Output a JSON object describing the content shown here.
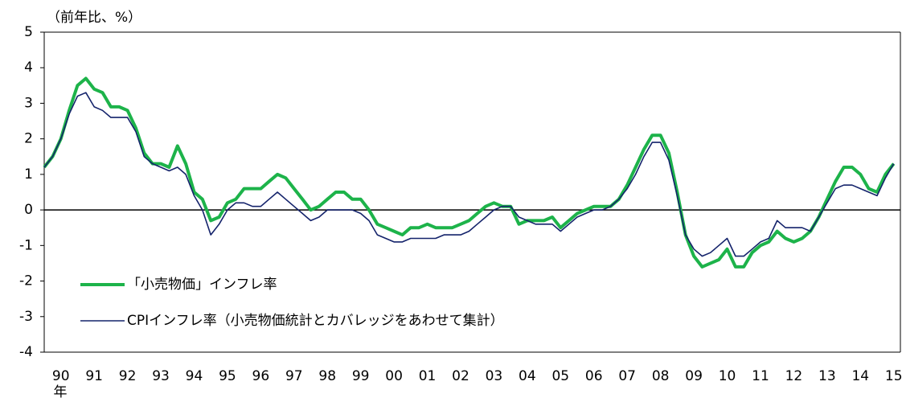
{
  "chart_data": {
    "type": "line",
    "y_unit_label": "（前年比、%）",
    "x_label": "年",
    "x": [
      1990,
      1990.25,
      1990.5,
      1990.75,
      1991,
      1991.25,
      1991.5,
      1991.75,
      1992,
      1992.25,
      1992.5,
      1992.75,
      1993,
      1993.25,
      1993.5,
      1993.75,
      1994,
      1994.25,
      1994.5,
      1994.75,
      1995,
      1995.25,
      1995.5,
      1995.75,
      1996,
      1996.25,
      1996.5,
      1996.75,
      1997,
      1997.25,
      1997.5,
      1997.75,
      1998,
      1998.25,
      1998.5,
      1998.75,
      1999,
      1999.25,
      1999.5,
      1999.75,
      2000,
      2000.25,
      2000.5,
      2000.75,
      2001,
      2001.25,
      2001.5,
      2001.75,
      2002,
      2002.25,
      2002.5,
      2002.75,
      2003,
      2003.25,
      2003.5,
      2003.75,
      2004,
      2004.25,
      2004.5,
      2004.75,
      2005,
      2005.25,
      2005.5,
      2005.75,
      2006,
      2006.25,
      2006.5,
      2006.75,
      2007,
      2007.25,
      2007.5,
      2007.75,
      2008,
      2008.25,
      2008.5,
      2008.75,
      2009,
      2009.25,
      2009.5,
      2009.75,
      2010,
      2010.25,
      2010.5,
      2010.75,
      2011,
      2011.25,
      2011.5,
      2011.75,
      2012,
      2012.25,
      2012.5,
      2012.75,
      2013,
      2013.25,
      2013.5,
      2013.75,
      2014,
      2014.25,
      2014.5,
      2014.75,
      2015,
      2015.25,
      2015.5
    ],
    "series": [
      {
        "name": "「小売物価」インフレ率",
        "color": "#1db34a",
        "width": 4,
        "values": [
          1.2,
          1.5,
          2.0,
          2.8,
          3.5,
          3.7,
          3.4,
          3.3,
          2.9,
          2.9,
          2.8,
          2.3,
          1.6,
          1.3,
          1.3,
          1.2,
          1.8,
          1.3,
          0.5,
          0.3,
          -0.3,
          -0.2,
          0.2,
          0.3,
          0.6,
          0.6,
          0.6,
          0.8,
          1.0,
          0.9,
          0.6,
          0.3,
          0.0,
          0.1,
          0.3,
          0.5,
          0.5,
          0.3,
          0.3,
          0.0,
          -0.4,
          -0.5,
          -0.6,
          -0.7,
          -0.5,
          -0.5,
          -0.4,
          -0.5,
          -0.5,
          -0.5,
          -0.4,
          -0.3,
          -0.1,
          0.1,
          0.2,
          0.1,
          0.1,
          -0.4,
          -0.3,
          -0.3,
          -0.3,
          -0.2,
          -0.5,
          -0.3,
          -0.1,
          0.0,
          0.1,
          0.1,
          0.1,
          0.3,
          0.7,
          1.2,
          1.7,
          2.1,
          2.1,
          1.6,
          0.5,
          -0.7,
          -1.3,
          -1.6,
          -1.5,
          -1.4,
          -1.1,
          -1.6,
          -1.6,
          -1.2,
          -1.0,
          -0.9,
          -0.6,
          -0.8,
          -0.9,
          -0.8,
          -0.6,
          -0.2,
          0.3,
          0.8,
          1.2,
          1.2,
          1.0,
          0.6,
          0.5,
          1.0,
          1.3
        ]
      },
      {
        "name": "CPIインフレ率（小売物価統計とカバレッジをあわせて集計）",
        "color": "#14236b",
        "width": 1.6,
        "values": [
          1.2,
          1.5,
          2.0,
          2.7,
          3.2,
          3.3,
          2.9,
          2.8,
          2.6,
          2.6,
          2.6,
          2.2,
          1.5,
          1.3,
          1.2,
          1.1,
          1.2,
          1.0,
          0.4,
          0.0,
          -0.7,
          -0.4,
          0.0,
          0.2,
          0.2,
          0.1,
          0.1,
          0.3,
          0.5,
          0.3,
          0.1,
          -0.1,
          -0.3,
          -0.2,
          0.0,
          0.0,
          0.0,
          0.0,
          -0.1,
          -0.3,
          -0.7,
          -0.8,
          -0.9,
          -0.9,
          -0.8,
          -0.8,
          -0.8,
          -0.8,
          -0.7,
          -0.7,
          -0.7,
          -0.6,
          -0.4,
          -0.2,
          0.0,
          0.1,
          0.1,
          -0.2,
          -0.3,
          -0.4,
          -0.4,
          -0.4,
          -0.6,
          -0.4,
          -0.2,
          -0.1,
          0.0,
          0.0,
          0.1,
          0.3,
          0.6,
          1.0,
          1.5,
          1.9,
          1.9,
          1.4,
          0.4,
          -0.7,
          -1.1,
          -1.3,
          -1.2,
          -1.0,
          -0.8,
          -1.3,
          -1.3,
          -1.1,
          -0.9,
          -0.8,
          -0.3,
          -0.5,
          -0.5,
          -0.5,
          -0.6,
          -0.2,
          0.2,
          0.6,
          0.7,
          0.7,
          0.6,
          0.5,
          0.4,
          0.9,
          1.3
        ]
      }
    ],
    "xlim": [
      1990,
      2015.7
    ],
    "xticks": [
      {
        "value": 1990.5,
        "label": "90"
      },
      {
        "value": 1991.5,
        "label": "91"
      },
      {
        "value": 1992.5,
        "label": "92"
      },
      {
        "value": 1993.5,
        "label": "93"
      },
      {
        "value": 1994.5,
        "label": "94"
      },
      {
        "value": 1995.5,
        "label": "95"
      },
      {
        "value": 1996.5,
        "label": "96"
      },
      {
        "value": 1997.5,
        "label": "97"
      },
      {
        "value": 1998.5,
        "label": "98"
      },
      {
        "value": 1999.5,
        "label": "99"
      },
      {
        "value": 2000.5,
        "label": "00"
      },
      {
        "value": 2001.5,
        "label": "01"
      },
      {
        "value": 2002.5,
        "label": "02"
      },
      {
        "value": 2003.5,
        "label": "03"
      },
      {
        "value": 2004.5,
        "label": "04"
      },
      {
        "value": 2005.5,
        "label": "05"
      },
      {
        "value": 2006.5,
        "label": "06"
      },
      {
        "value": 2007.5,
        "label": "07"
      },
      {
        "value": 2008.5,
        "label": "08"
      },
      {
        "value": 2009.5,
        "label": "09"
      },
      {
        "value": 2010.5,
        "label": "10"
      },
      {
        "value": 2011.5,
        "label": "11"
      },
      {
        "value": 2012.5,
        "label": "12"
      },
      {
        "value": 2013.5,
        "label": "13"
      },
      {
        "value": 2014.5,
        "label": "14"
      },
      {
        "value": 2015.5,
        "label": "15"
      }
    ],
    "ylim": [
      -4,
      5
    ],
    "yticks": [
      -4,
      -3,
      -2,
      -1,
      0,
      1,
      2,
      3,
      4,
      5
    ],
    "legend": "lower left"
  }
}
